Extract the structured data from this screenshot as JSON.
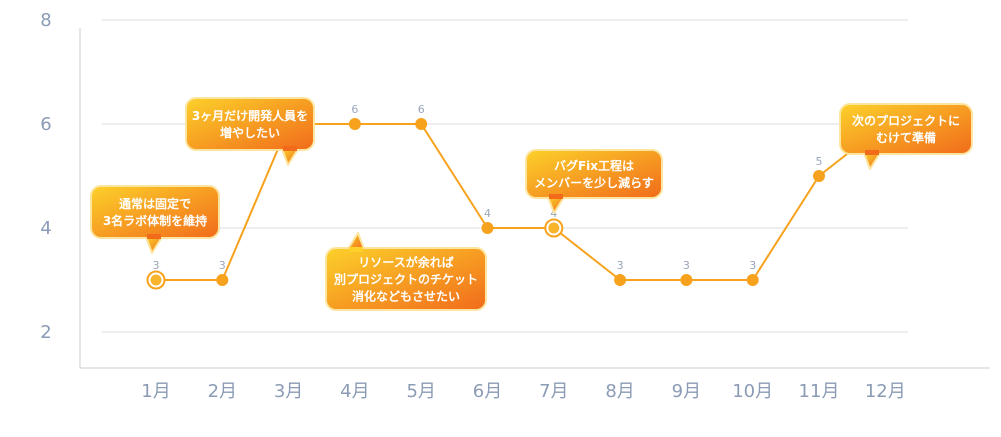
{
  "chart_data": {
    "type": "line",
    "categories": [
      "1月",
      "2月",
      "3月",
      "4月",
      "5月",
      "6月",
      "7月",
      "8月",
      "9月",
      "10月",
      "11月",
      "12月"
    ],
    "values": [
      3,
      3,
      6,
      6,
      6,
      4,
      4,
      3,
      3,
      3,
      5,
      6
    ],
    "title": "",
    "xlabel": "",
    "ylabel": "",
    "ylim": [
      0,
      10
    ],
    "yticks": [
      2,
      4,
      6,
      8
    ],
    "grid": true,
    "colors": {
      "line": "#f7a21d",
      "marker_fill": "#f7a21d",
      "marker_highlight_stroke": "#f7a21d",
      "marker_highlight_fill": "#f8b42b",
      "callout_start": "#fcd12a",
      "callout_end": "#f16b1b",
      "callout_border": "#fde5a0",
      "grid": "#d9dce3",
      "axis": "#c8ccd6"
    },
    "highlighted_points": [
      0,
      2,
      6,
      11
    ],
    "annotations": [
      {
        "point_index": 0,
        "lines": [
          "通常は固定で",
          "3名ラボ体制を維持"
        ]
      },
      {
        "point_index": 2,
        "lines": [
          "3ヶ月だけ開発人員を",
          "増やしたい"
        ]
      },
      {
        "point_index": 5,
        "lines": [
          "リソースが余れば",
          "別プロジェクトのチケット",
          "消化などもさせたい"
        ]
      },
      {
        "point_index": 6,
        "lines": [
          "バグFix工程は",
          "メンバーを少し減らす"
        ]
      },
      {
        "point_index": 11,
        "lines": [
          "次のプロジェクトに",
          "むけて準備"
        ]
      }
    ]
  }
}
